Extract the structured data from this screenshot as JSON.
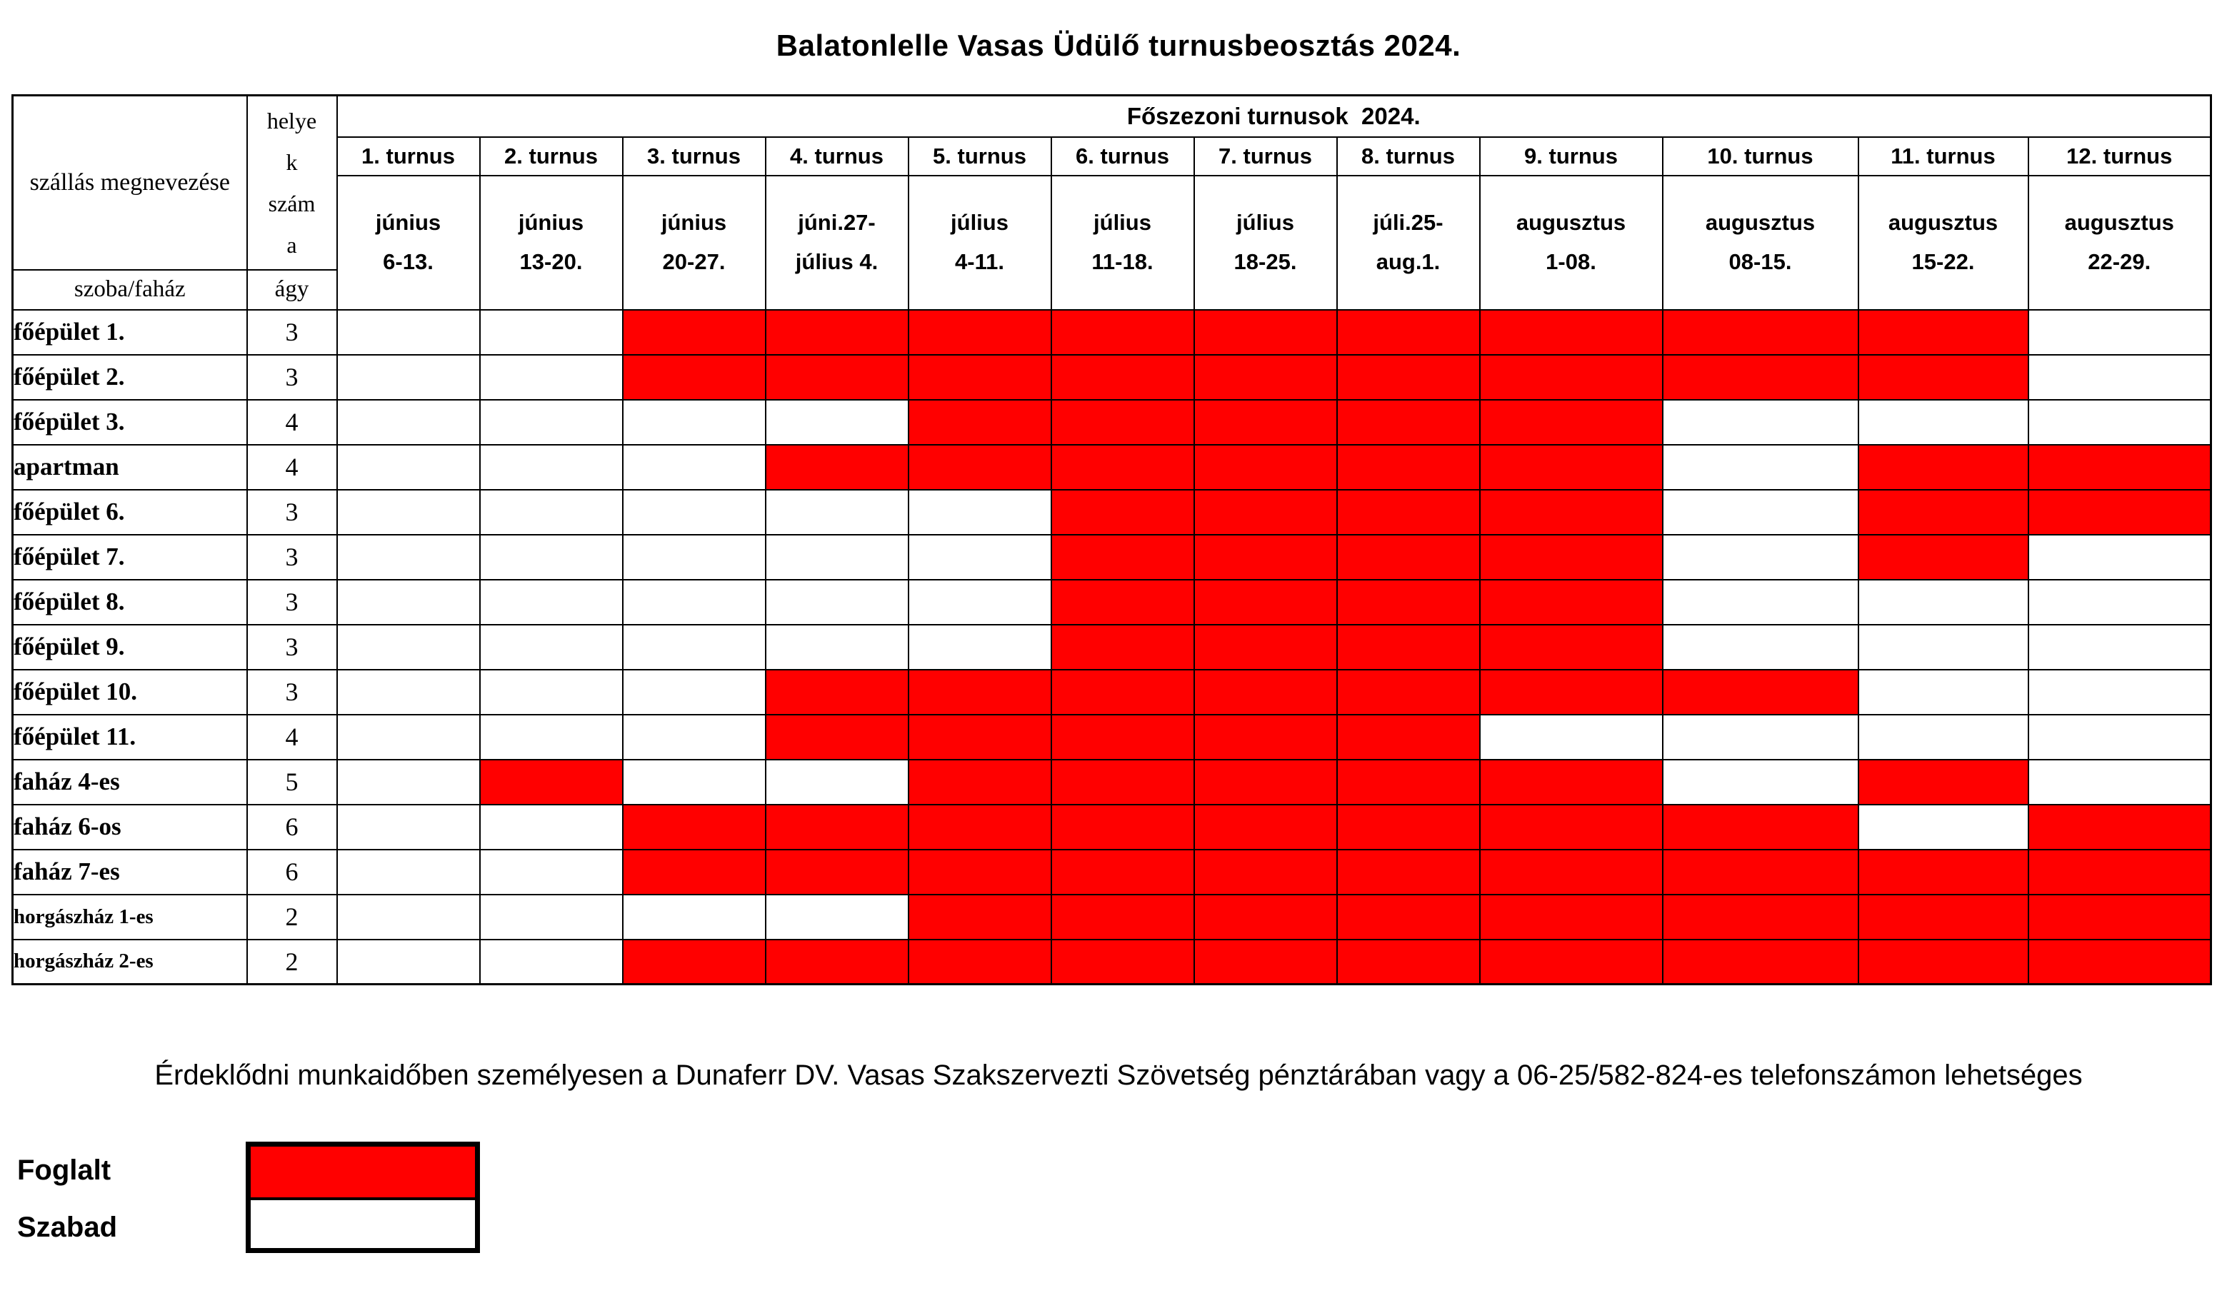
{
  "page": {
    "title": "Balatonlelle Vasas Üdülő turnusbeosztás 2024.",
    "footer_note": "Érdeklődni munkaidőben személyesen a Dunaferr DV. Vasas Szakszervezti Szövetség pénztárában vagy a 06-25/582-824-es telefonszámon lehetséges"
  },
  "table": {
    "season_header": "Főszezoni turnusok  2024.",
    "accommodation_header": "szállás megnevezése",
    "accommodation_subheader": "szoba/faház",
    "beds_header": "helyek száma",
    "beds_header_lines": [
      "helye",
      "k",
      "szám",
      "a"
    ],
    "beds_subheader": "ágy",
    "turnus": [
      {
        "label": "1. turnus",
        "date_line1": "június",
        "date_line2": "6-13."
      },
      {
        "label": "2. turnus",
        "date_line1": "június",
        "date_line2": "13-20."
      },
      {
        "label": "3. turnus",
        "date_line1": "június",
        "date_line2": "20-27."
      },
      {
        "label": "4. turnus",
        "date_line1": "júni.27-",
        "date_line2": "július 4."
      },
      {
        "label": "5. turnus",
        "date_line1": "július",
        "date_line2": "4-11."
      },
      {
        "label": "6. turnus",
        "date_line1": "július",
        "date_line2": "11-18."
      },
      {
        "label": "7. turnus",
        "date_line1": "július",
        "date_line2": "18-25."
      },
      {
        "label": "8. turnus",
        "date_line1": "júli.25-",
        "date_line2": "aug.1."
      },
      {
        "label": "9. turnus",
        "date_line1": "augusztus",
        "date_line2": "1-08."
      },
      {
        "label": "10. turnus",
        "date_line1": "augusztus",
        "date_line2": "08-15."
      },
      {
        "label": "11. turnus",
        "date_line1": "augusztus",
        "date_line2": "15-22."
      },
      {
        "label": "12. turnus",
        "date_line1": "augusztus",
        "date_line2": "22-29."
      }
    ],
    "rows": [
      {
        "name": "főépület 1.",
        "beds": "3",
        "occupancy": [
          0,
          0,
          1,
          1,
          1,
          1,
          1,
          1,
          1,
          1,
          1,
          0
        ]
      },
      {
        "name": "főépület 2.",
        "beds": "3",
        "occupancy": [
          0,
          0,
          1,
          1,
          1,
          1,
          1,
          1,
          1,
          1,
          1,
          0
        ]
      },
      {
        "name": "főépület 3.",
        "beds": "4",
        "occupancy": [
          0,
          0,
          0,
          0,
          1,
          1,
          1,
          1,
          1,
          0,
          0,
          0
        ]
      },
      {
        "name": "apartman",
        "beds": "4",
        "occupancy": [
          0,
          0,
          0,
          1,
          1,
          1,
          1,
          1,
          1,
          0,
          1,
          1
        ]
      },
      {
        "name": "főépület 6.",
        "beds": "3",
        "occupancy": [
          0,
          0,
          0,
          0,
          0,
          1,
          1,
          1,
          1,
          0,
          1,
          1
        ]
      },
      {
        "name": "főépület 7.",
        "beds": "3",
        "occupancy": [
          0,
          0,
          0,
          0,
          0,
          1,
          1,
          1,
          1,
          0,
          1,
          0
        ]
      },
      {
        "name": "főépület 8.",
        "beds": "3",
        "occupancy": [
          0,
          0,
          0,
          0,
          0,
          1,
          1,
          1,
          1,
          0,
          0,
          0
        ]
      },
      {
        "name": "főépület 9.",
        "beds": "3",
        "occupancy": [
          0,
          0,
          0,
          0,
          0,
          1,
          1,
          1,
          1,
          0,
          0,
          0
        ]
      },
      {
        "name": "főépület 10.",
        "beds": "3",
        "occupancy": [
          0,
          0,
          0,
          1,
          1,
          1,
          1,
          1,
          1,
          1,
          0,
          0
        ]
      },
      {
        "name": "főépület 11.",
        "beds": "4",
        "occupancy": [
          0,
          0,
          0,
          1,
          1,
          1,
          1,
          1,
          0,
          0,
          0,
          0
        ]
      },
      {
        "name": "faház 4-es",
        "beds": "5",
        "occupancy": [
          0,
          1,
          0,
          0,
          1,
          1,
          1,
          1,
          1,
          0,
          1,
          0
        ]
      },
      {
        "name": "faház 6-os",
        "beds": "6",
        "occupancy": [
          0,
          0,
          1,
          1,
          1,
          1,
          1,
          1,
          1,
          1,
          0,
          1
        ]
      },
      {
        "name": "faház 7-es",
        "beds": "6",
        "occupancy": [
          0,
          0,
          1,
          1,
          1,
          1,
          1,
          1,
          1,
          1,
          1,
          1
        ]
      },
      {
        "name": "horgászház 1-es",
        "beds": "2",
        "occupancy": [
          0,
          0,
          0,
          0,
          1,
          1,
          1,
          1,
          1,
          1,
          1,
          1
        ]
      },
      {
        "name": "horgászház 2-es",
        "beds": "2",
        "occupancy": [
          0,
          0,
          1,
          1,
          1,
          1,
          1,
          1,
          1,
          1,
          1,
          1
        ]
      }
    ]
  },
  "legend": {
    "occupied_label": "Foglalt",
    "free_label": "Szabad",
    "occupied_color": "#FF0000",
    "free_color": "#FFFFFF"
  }
}
